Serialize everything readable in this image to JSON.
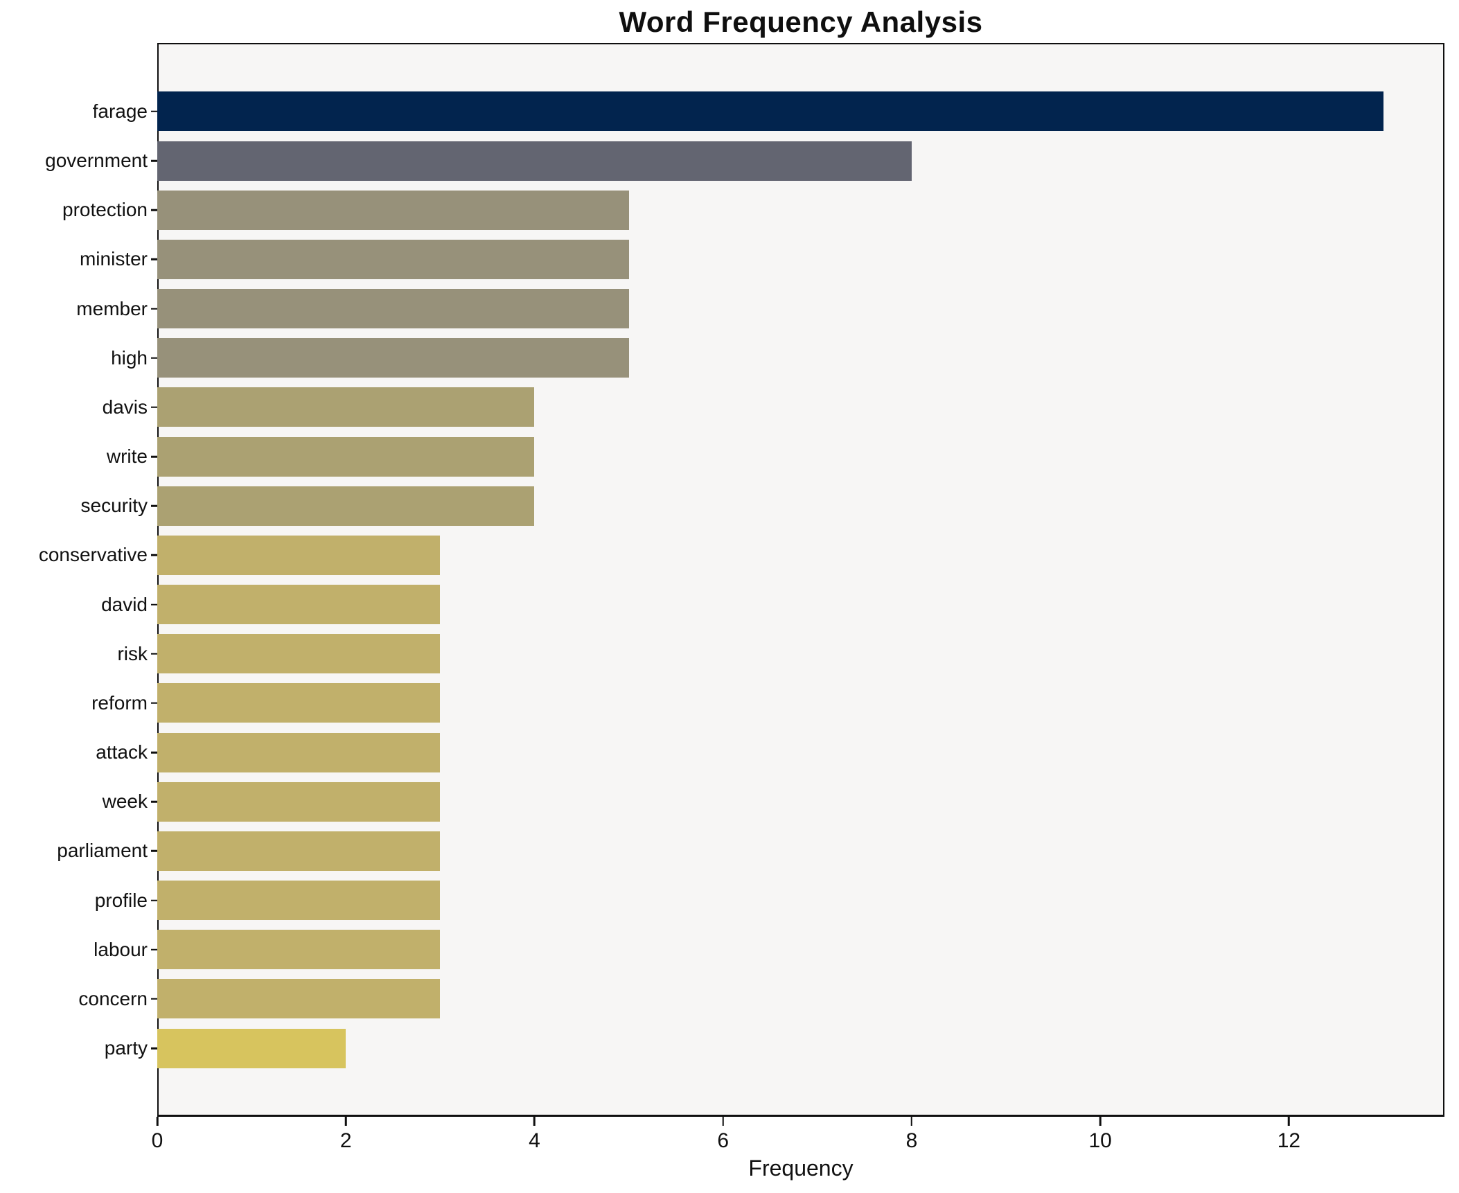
{
  "chart_data": {
    "type": "bar",
    "orientation": "horizontal",
    "title": "Word Frequency Analysis",
    "xlabel": "Frequency",
    "ylabel": "",
    "categories": [
      "farage",
      "government",
      "protection",
      "minister",
      "member",
      "high",
      "davis",
      "write",
      "security",
      "conservative",
      "david",
      "risk",
      "reform",
      "attack",
      "week",
      "parliament",
      "profile",
      "labour",
      "concern",
      "party"
    ],
    "values": [
      13,
      8,
      5,
      5,
      5,
      5,
      4,
      4,
      4,
      3,
      3,
      3,
      3,
      3,
      3,
      3,
      3,
      3,
      3,
      2
    ],
    "bar_colors": [
      "#02244e",
      "#636571",
      "#97917a",
      "#97917a",
      "#97917a",
      "#97917a",
      "#aba172",
      "#aba172",
      "#aba172",
      "#c1b06b",
      "#c1b06b",
      "#c1b06b",
      "#c1b06b",
      "#c1b06b",
      "#c1b06b",
      "#c1b06b",
      "#c1b06b",
      "#c1b06b",
      "#c1b06b",
      "#d7c45e"
    ],
    "xlim": [
      0,
      13.65
    ],
    "xticks": [
      0,
      2,
      4,
      6,
      8,
      10,
      12
    ],
    "grid": false,
    "legend": null,
    "plot_background": "#f7f6f5",
    "figure_background": "#ffffff",
    "axis_color": "#0f0f0f",
    "bar_height_fraction": 0.8
  }
}
